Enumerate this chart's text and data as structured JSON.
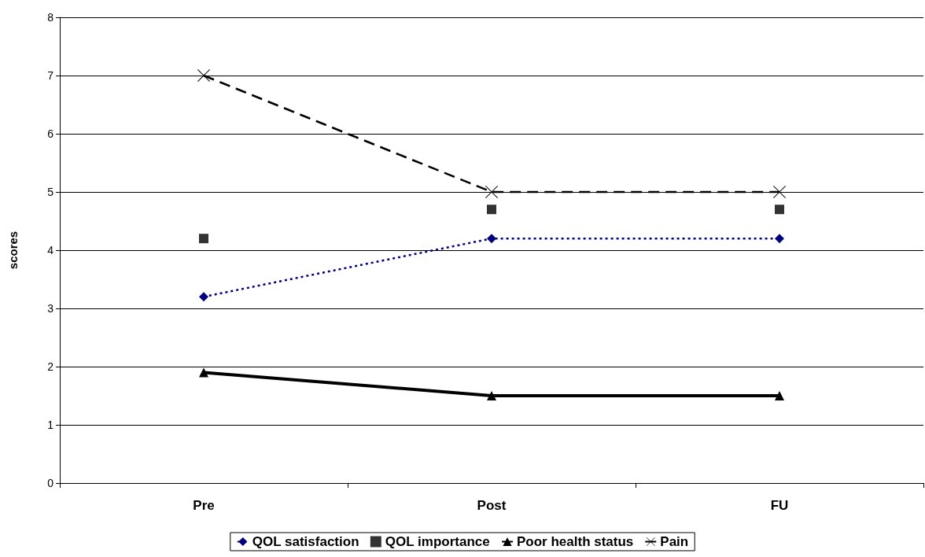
{
  "chart_data": {
    "type": "line",
    "ylabel": "scores",
    "categories": [
      "Pre",
      "Post",
      "FU"
    ],
    "ylim": [
      0,
      8
    ],
    "yticks": [
      0,
      1,
      2,
      3,
      4,
      5,
      6,
      7,
      8
    ],
    "grid": "y",
    "legend": "bottom",
    "series": [
      {
        "name": "QOL satisfaction",
        "color": "#000080",
        "values": [
          3.2,
          4.2,
          4.2
        ],
        "marker": "diamond",
        "line_style": "dotted"
      },
      {
        "name": "QOL importance",
        "type": "scatter",
        "color": "#000000",
        "values": [
          4.2,
          4.7,
          4.7
        ],
        "marker": "square"
      },
      {
        "name": "Poor health status",
        "color": "#000000",
        "values": [
          1.9,
          1.5,
          1.5
        ],
        "marker": "triangle",
        "line_style": "solid"
      },
      {
        "name": "Pain",
        "color": "#000000",
        "values": [
          7,
          5,
          5
        ],
        "marker": "cross",
        "line_style": "dashed"
      }
    ]
  }
}
